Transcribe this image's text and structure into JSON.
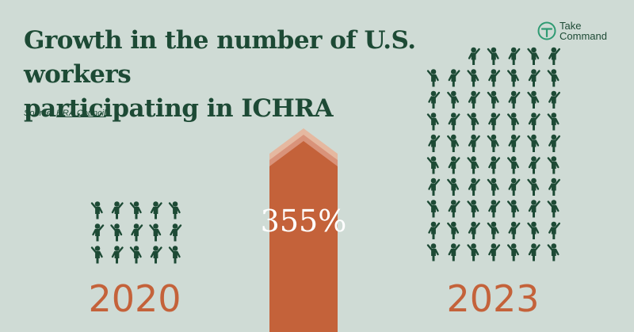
{
  "header": {
    "title_line1": "Growth in the number of U.S. workers",
    "title_line2": "participating in ICHRA",
    "source_label": "Source:",
    "source_link": "HRA Council"
  },
  "brand": {
    "line1": "Take",
    "line2": "Command",
    "icon": "take-command-logo-icon"
  },
  "colors": {
    "background": "#cfdbd5",
    "figure": "#1d4a35",
    "accent": "#c4623a",
    "arrow_light_1": "#e5b8a0",
    "arrow_light_2": "#d9937a",
    "text_on_accent": "#ffffff"
  },
  "chart_data": {
    "type": "pictograph",
    "categories": [
      "2020",
      "2023"
    ],
    "icon_counts": [
      15,
      68
    ],
    "change_label": "355%"
  }
}
